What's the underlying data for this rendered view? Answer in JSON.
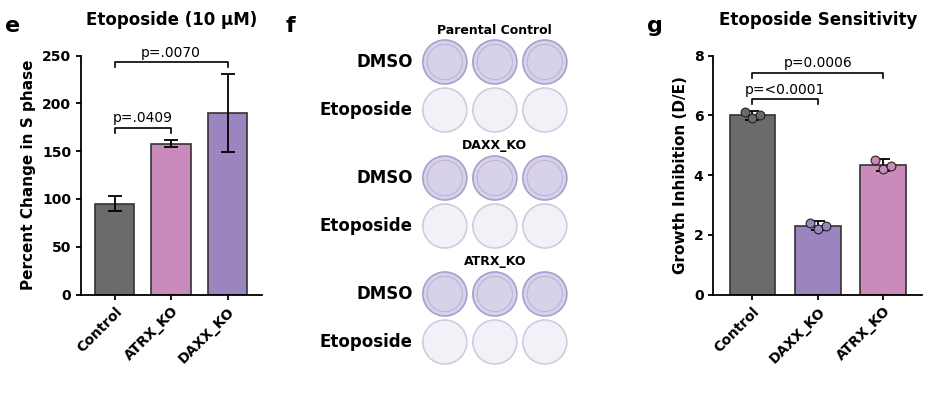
{
  "chart_data": [
    {
      "type": "bar",
      "panel": "e",
      "title": "Etoposide (10 μM)",
      "y_label": "Percent Change in S phase",
      "categories": [
        "Control",
        "ATRX_KO",
        "DAXX_KO"
      ],
      "values": [
        95,
        158,
        190
      ],
      "error": [
        8,
        4,
        41
      ],
      "colors": [
        "#6b6b6b",
        "#c98bbb",
        "#9c84bf"
      ],
      "ylim": [
        0,
        250
      ],
      "yticks": [
        0,
        50,
        100,
        150,
        200,
        250
      ],
      "annotations": [
        {
          "text": "p=.0409",
          "from": "Control",
          "to": "ATRX_KO"
        },
        {
          "text": "p=.0070",
          "from": "Control",
          "to": "DAXX_KO"
        }
      ]
    },
    {
      "type": "bar",
      "panel": "g",
      "title": "Etoposide Sensitivity",
      "y_label": "Growth Inhibition (D/E)",
      "categories": [
        "Control",
        "DAXX_KO",
        "ATRX_KO"
      ],
      "values": [
        6.0,
        2.3,
        4.35
      ],
      "error": [
        0.15,
        0.15,
        0.2
      ],
      "points": [
        [
          6.1,
          5.9,
          6.0
        ],
        [
          2.4,
          2.2,
          2.3
        ],
        [
          4.5,
          4.2,
          4.3
        ]
      ],
      "colors": [
        "#6b6b6b",
        "#9c84bf",
        "#c98bbb"
      ],
      "ylim": [
        0,
        8
      ],
      "yticks": [
        0,
        2,
        4,
        6,
        8
      ],
      "annotations": [
        {
          "text": "p=<0.0001",
          "from": "Control",
          "to": "DAXX_KO"
        },
        {
          "text": "p=0.0006",
          "from": "Control",
          "to": "ATRX_KO"
        }
      ]
    }
  ],
  "plate_panel": {
    "panel": "f",
    "groups": [
      {
        "title": "Parental Control",
        "rows": [
          {
            "label": "DMSO",
            "wells": 3
          },
          {
            "label": "Etoposide",
            "wells": 3
          }
        ]
      },
      {
        "title": "DAXX_KO",
        "rows": [
          {
            "label": "DMSO",
            "wells": 3
          },
          {
            "label": "Etoposide",
            "wells": 3
          }
        ]
      },
      {
        "title": "ATRX_KO",
        "rows": [
          {
            "label": "DMSO",
            "wells": 3
          },
          {
            "label": "Etoposide",
            "wells": 3
          }
        ]
      }
    ]
  }
}
